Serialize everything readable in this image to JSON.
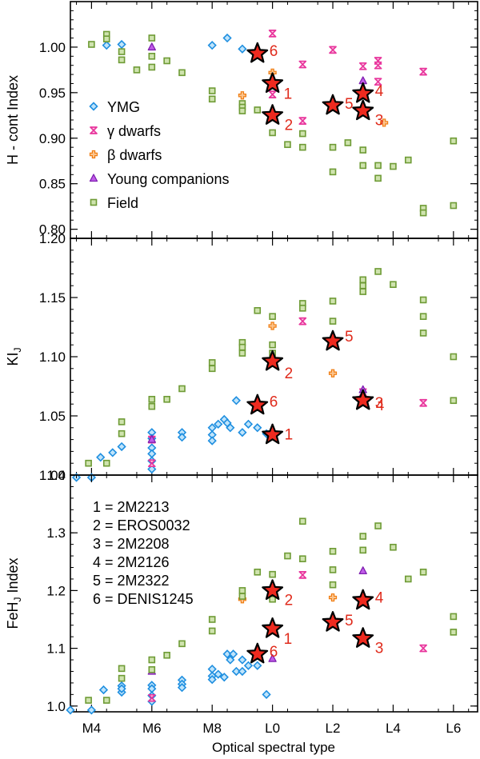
{
  "figure": {
    "xlabel": "Optical spectral type",
    "xrange": [
      3.3,
      16.8
    ],
    "xticks": [
      {
        "v": 4,
        "label": "M4"
      },
      {
        "v": 6,
        "label": "M6"
      },
      {
        "v": 8,
        "label": "M8"
      },
      {
        "v": 10,
        "label": "L0"
      },
      {
        "v": 12,
        "label": "L2"
      },
      {
        "v": 14,
        "label": "L4"
      },
      {
        "v": 16,
        "label": "L6"
      }
    ]
  },
  "colors": {
    "ymg_edge": "#1f8fe0",
    "ymg_fill": "#bfe4fb",
    "gamma": "#e8359c",
    "beta": "#f07d12",
    "young_edge": "#7f1fb0",
    "young_fill": "#c05ce8",
    "field_edge": "#6e9b35",
    "field_fill": "#cfe3ae",
    "star_fill": "#ee2a1f",
    "star_edge": "#000000",
    "star_label": "#e02b1c"
  },
  "legend": [
    {
      "marker": "ymg",
      "label": "YMG"
    },
    {
      "marker": "gamma",
      "label": "γ dwarfs"
    },
    {
      "marker": "beta",
      "label": "β dwarfs"
    },
    {
      "marker": "young",
      "label": "Young companions"
    },
    {
      "marker": "field",
      "label": "Field"
    }
  ],
  "key_list": [
    "1 = 2M2213",
    "2 = EROS0032",
    "3 = 2M2208",
    "4 = 2M2126",
    "5 = 2M2322",
    "6 = DENIS1245"
  ],
  "chart_data": [
    {
      "type": "scatter",
      "title": "",
      "ylabel": "H - cont  Index",
      "ylim": [
        0.79,
        1.05
      ],
      "yticks": [
        0.8,
        0.85,
        0.9,
        0.95,
        1.0
      ],
      "ytick_labels": [
        "0.80",
        "0.85",
        "0.90",
        "0.95",
        "1.00"
      ],
      "series": [
        {
          "name": "YMG",
          "marker": "ymg",
          "points": [
            [
              4.5,
              1.002
            ],
            [
              5,
              1.003
            ],
            [
              8,
              1.002
            ],
            [
              8.5,
              1.01
            ],
            [
              9,
              0.998
            ]
          ]
        },
        {
          "name": "γ dwarfs",
          "marker": "gamma",
          "points": [
            [
              10,
              1.015
            ],
            [
              10,
              0.948
            ],
            [
              11,
              0.981
            ],
            [
              11,
              0.919
            ],
            [
              12,
              0.997
            ],
            [
              13,
              0.979
            ],
            [
              13.5,
              0.985
            ],
            [
              13.5,
              0.98
            ],
            [
              13.5,
              0.962
            ],
            [
              15,
              0.973
            ]
          ]
        },
        {
          "name": "β dwarfs",
          "marker": "beta",
          "points": [
            [
              9,
              0.947
            ],
            [
              10,
              0.972
            ],
            [
              13.7,
              0.917
            ]
          ]
        },
        {
          "name": "Young companions",
          "marker": "young",
          "points": [
            [
              6,
              1.0
            ],
            [
              13,
              0.963
            ]
          ]
        },
        {
          "name": "Field",
          "marker": "field",
          "points": [
            [
              4,
              1.003
            ],
            [
              4.5,
              1.014
            ],
            [
              4.5,
              1.009
            ],
            [
              5,
              0.995
            ],
            [
              5,
              0.986
            ],
            [
              5.5,
              0.975
            ],
            [
              6,
              1.01
            ],
            [
              6,
              0.99
            ],
            [
              6,
              0.978
            ],
            [
              6.5,
              0.985
            ],
            [
              7,
              0.972
            ],
            [
              8,
              0.952
            ],
            [
              8,
              0.943
            ],
            [
              9,
              0.938
            ],
            [
              9,
              0.934
            ],
            [
              9,
              0.93
            ],
            [
              9.5,
              0.931
            ],
            [
              10,
              0.906
            ],
            [
              10.5,
              0.893
            ],
            [
              11,
              0.905
            ],
            [
              11,
              0.89
            ],
            [
              12,
              0.863
            ],
            [
              12,
              0.89
            ],
            [
              12.5,
              0.895
            ],
            [
              13,
              0.887
            ],
            [
              13,
              0.87
            ],
            [
              13.5,
              0.87
            ],
            [
              13.5,
              0.856
            ],
            [
              14,
              0.869
            ],
            [
              14.5,
              0.876
            ],
            [
              15,
              0.823
            ],
            [
              15,
              0.818
            ],
            [
              16,
              0.897
            ],
            [
              16,
              0.826
            ]
          ]
        }
      ],
      "highlights": [
        {
          "id": "1",
          "x": 10,
          "y": 0.96
        },
        {
          "id": "2",
          "x": 10,
          "y": 0.925
        },
        {
          "id": "3",
          "x": 13,
          "y": 0.93
        },
        {
          "id": "4",
          "x": 13,
          "y": 0.949
        },
        {
          "id": "5",
          "x": 12,
          "y": 0.936
        },
        {
          "id": "6",
          "x": 9.5,
          "y": 0.993
        }
      ]
    },
    {
      "type": "scatter",
      "title": "",
      "ylabel": "KI_J",
      "ylim": [
        1.0,
        1.2
      ],
      "yticks": [
        1.0,
        1.05,
        1.1,
        1.15,
        1.2
      ],
      "ytick_labels": [
        "1.00",
        "1.05",
        "1.10",
        "1.15",
        "1.20"
      ],
      "series": [
        {
          "name": "YMG",
          "marker": "ymg",
          "points": [
            [
              3.5,
              0.998
            ],
            [
              4,
              0.998
            ],
            [
              4.3,
              1.015
            ],
            [
              4.7,
              1.019
            ],
            [
              5,
              1.024
            ],
            [
              6,
              1.036
            ],
            [
              6,
              1.031
            ],
            [
              6,
              1.023
            ],
            [
              6,
              1.018
            ],
            [
              6,
              1.012
            ],
            [
              6,
              1.005
            ],
            [
              7,
              1.036
            ],
            [
              7,
              1.032
            ],
            [
              8,
              1.04
            ],
            [
              8,
              1.034
            ],
            [
              8,
              1.029
            ],
            [
              8.2,
              1.043
            ],
            [
              8.4,
              1.047
            ],
            [
              8.5,
              1.044
            ],
            [
              8.6,
              1.04
            ],
            [
              8.8,
              1.063
            ],
            [
              9,
              1.036
            ],
            [
              9.2,
              1.043
            ],
            [
              9.5,
              1.04
            ],
            [
              9.8,
              1.035
            ]
          ]
        },
        {
          "name": "γ dwarfs",
          "marker": "gamma",
          "points": [
            [
              6,
              1.01
            ],
            [
              6,
              1.03
            ],
            [
              11,
              1.13
            ],
            [
              13,
              1.07
            ],
            [
              15,
              1.061
            ]
          ]
        },
        {
          "name": "β dwarfs",
          "marker": "beta",
          "points": [
            [
              10,
              1.126
            ],
            [
              12,
              1.086
            ]
          ]
        },
        {
          "name": "Young companions",
          "marker": "young",
          "points": [
            [
              6,
              1.03
            ],
            [
              13,
              1.072
            ]
          ]
        },
        {
          "name": "Field",
          "marker": "field",
          "points": [
            [
              3.9,
              1.01
            ],
            [
              4.5,
              1.01
            ],
            [
              5,
              1.035
            ],
            [
              5,
              1.045
            ],
            [
              6,
              1.064
            ],
            [
              6,
              1.058
            ],
            [
              6.5,
              1.064
            ],
            [
              7,
              1.073
            ],
            [
              8,
              1.095
            ],
            [
              8,
              1.09
            ],
            [
              9,
              1.112
            ],
            [
              9,
              1.108
            ],
            [
              9,
              1.103
            ],
            [
              9.5,
              1.139
            ],
            [
              10,
              1.11
            ],
            [
              10,
              1.103
            ],
            [
              10,
              1.134
            ],
            [
              11,
              1.145
            ],
            [
              11,
              1.141
            ],
            [
              12,
              1.147
            ],
            [
              12,
              1.13
            ],
            [
              13,
              1.165
            ],
            [
              13,
              1.16
            ],
            [
              13,
              1.155
            ],
            [
              13.5,
              1.172
            ],
            [
              14,
              1.161
            ],
            [
              15,
              1.148
            ],
            [
              15,
              1.134
            ],
            [
              15,
              1.12
            ],
            [
              16,
              1.1
            ],
            [
              16,
              1.063
            ]
          ]
        }
      ],
      "highlights": [
        {
          "id": "1",
          "x": 10,
          "y": 1.034
        },
        {
          "id": "2",
          "x": 10,
          "y": 1.096
        },
        {
          "id": "3",
          "x": 13,
          "y": 1.063
        },
        {
          "id": "4",
          "x": 13,
          "y": 1.063
        },
        {
          "id": "5",
          "x": 12,
          "y": 1.113
        },
        {
          "id": "6",
          "x": 9.5,
          "y": 1.059
        }
      ]
    },
    {
      "type": "scatter",
      "title": "",
      "ylabel": "FeH_J Index",
      "ylim": [
        0.99,
        1.4
      ],
      "yticks": [
        1.0,
        1.1,
        1.2,
        1.3,
        1.4
      ],
      "ytick_labels": [
        "1.0",
        "1.1",
        "1.2",
        "1.3",
        "1.4"
      ],
      "series": [
        {
          "name": "YMG",
          "marker": "ymg",
          "points": [
            [
              3.3,
              0.993
            ],
            [
              4,
              0.993
            ],
            [
              4.4,
              1.028
            ],
            [
              5,
              1.024
            ],
            [
              5,
              1.035
            ],
            [
              5,
              1.03
            ],
            [
              6,
              1.036
            ],
            [
              6,
              1.03
            ],
            [
              6,
              1.018
            ],
            [
              6,
              1.008
            ],
            [
              7,
              1.045
            ],
            [
              7,
              1.038
            ],
            [
              7,
              1.032
            ],
            [
              8,
              1.064
            ],
            [
              8,
              1.052
            ],
            [
              8,
              1.046
            ],
            [
              8.2,
              1.055
            ],
            [
              8.4,
              1.05
            ],
            [
              8.5,
              1.09
            ],
            [
              8.6,
              1.08
            ],
            [
              8.7,
              1.09
            ],
            [
              8.8,
              1.06
            ],
            [
              9,
              1.08
            ],
            [
              9,
              1.06
            ],
            [
              9.2,
              1.07
            ],
            [
              9.5,
              1.07
            ],
            [
              9.8,
              1.02
            ]
          ]
        },
        {
          "name": "γ dwarfs",
          "marker": "gamma",
          "points": [
            [
              6,
              1.014
            ],
            [
              11,
              1.227
            ],
            [
              15,
              1.1
            ]
          ]
        },
        {
          "name": "β dwarfs",
          "marker": "beta",
          "points": [
            [
              9,
              1.185
            ],
            [
              12,
              1.188
            ]
          ]
        },
        {
          "name": "Young companions",
          "marker": "young",
          "points": [
            [
              6,
              1.06
            ],
            [
              10,
              1.082
            ],
            [
              13,
              1.234
            ]
          ]
        },
        {
          "name": "Field",
          "marker": "field",
          "points": [
            [
              3.9,
              1.01
            ],
            [
              4.5,
              1.01
            ],
            [
              5,
              1.065
            ],
            [
              5,
              1.048
            ],
            [
              6,
              1.08
            ],
            [
              6,
              1.063
            ],
            [
              6.5,
              1.088
            ],
            [
              7,
              1.108
            ],
            [
              8,
              1.15
            ],
            [
              8,
              1.13
            ],
            [
              9,
              1.2
            ],
            [
              9,
              1.19
            ],
            [
              9.5,
              1.232
            ],
            [
              10,
              1.228
            ],
            [
              10,
              1.185
            ],
            [
              10.5,
              1.26
            ],
            [
              11,
              1.32
            ],
            [
              11,
              1.255
            ],
            [
              12,
              1.268
            ],
            [
              12,
              1.236
            ],
            [
              12,
              1.21
            ],
            [
              13,
              1.294
            ],
            [
              13,
              1.27
            ],
            [
              13.5,
              1.312
            ],
            [
              14,
              1.275
            ],
            [
              14.5,
              1.22
            ],
            [
              15,
              1.232
            ],
            [
              16,
              1.155
            ],
            [
              16,
              1.128
            ]
          ]
        }
      ],
      "highlights": [
        {
          "id": "1",
          "x": 10,
          "y": 1.134
        },
        {
          "id": "2",
          "x": 10,
          "y": 1.2
        },
        {
          "id": "3",
          "x": 13,
          "y": 1.117
        },
        {
          "id": "4",
          "x": 13,
          "y": 1.183
        },
        {
          "id": "5",
          "x": 12,
          "y": 1.145
        },
        {
          "id": "6",
          "x": 9.5,
          "y": 1.09
        }
      ]
    }
  ]
}
